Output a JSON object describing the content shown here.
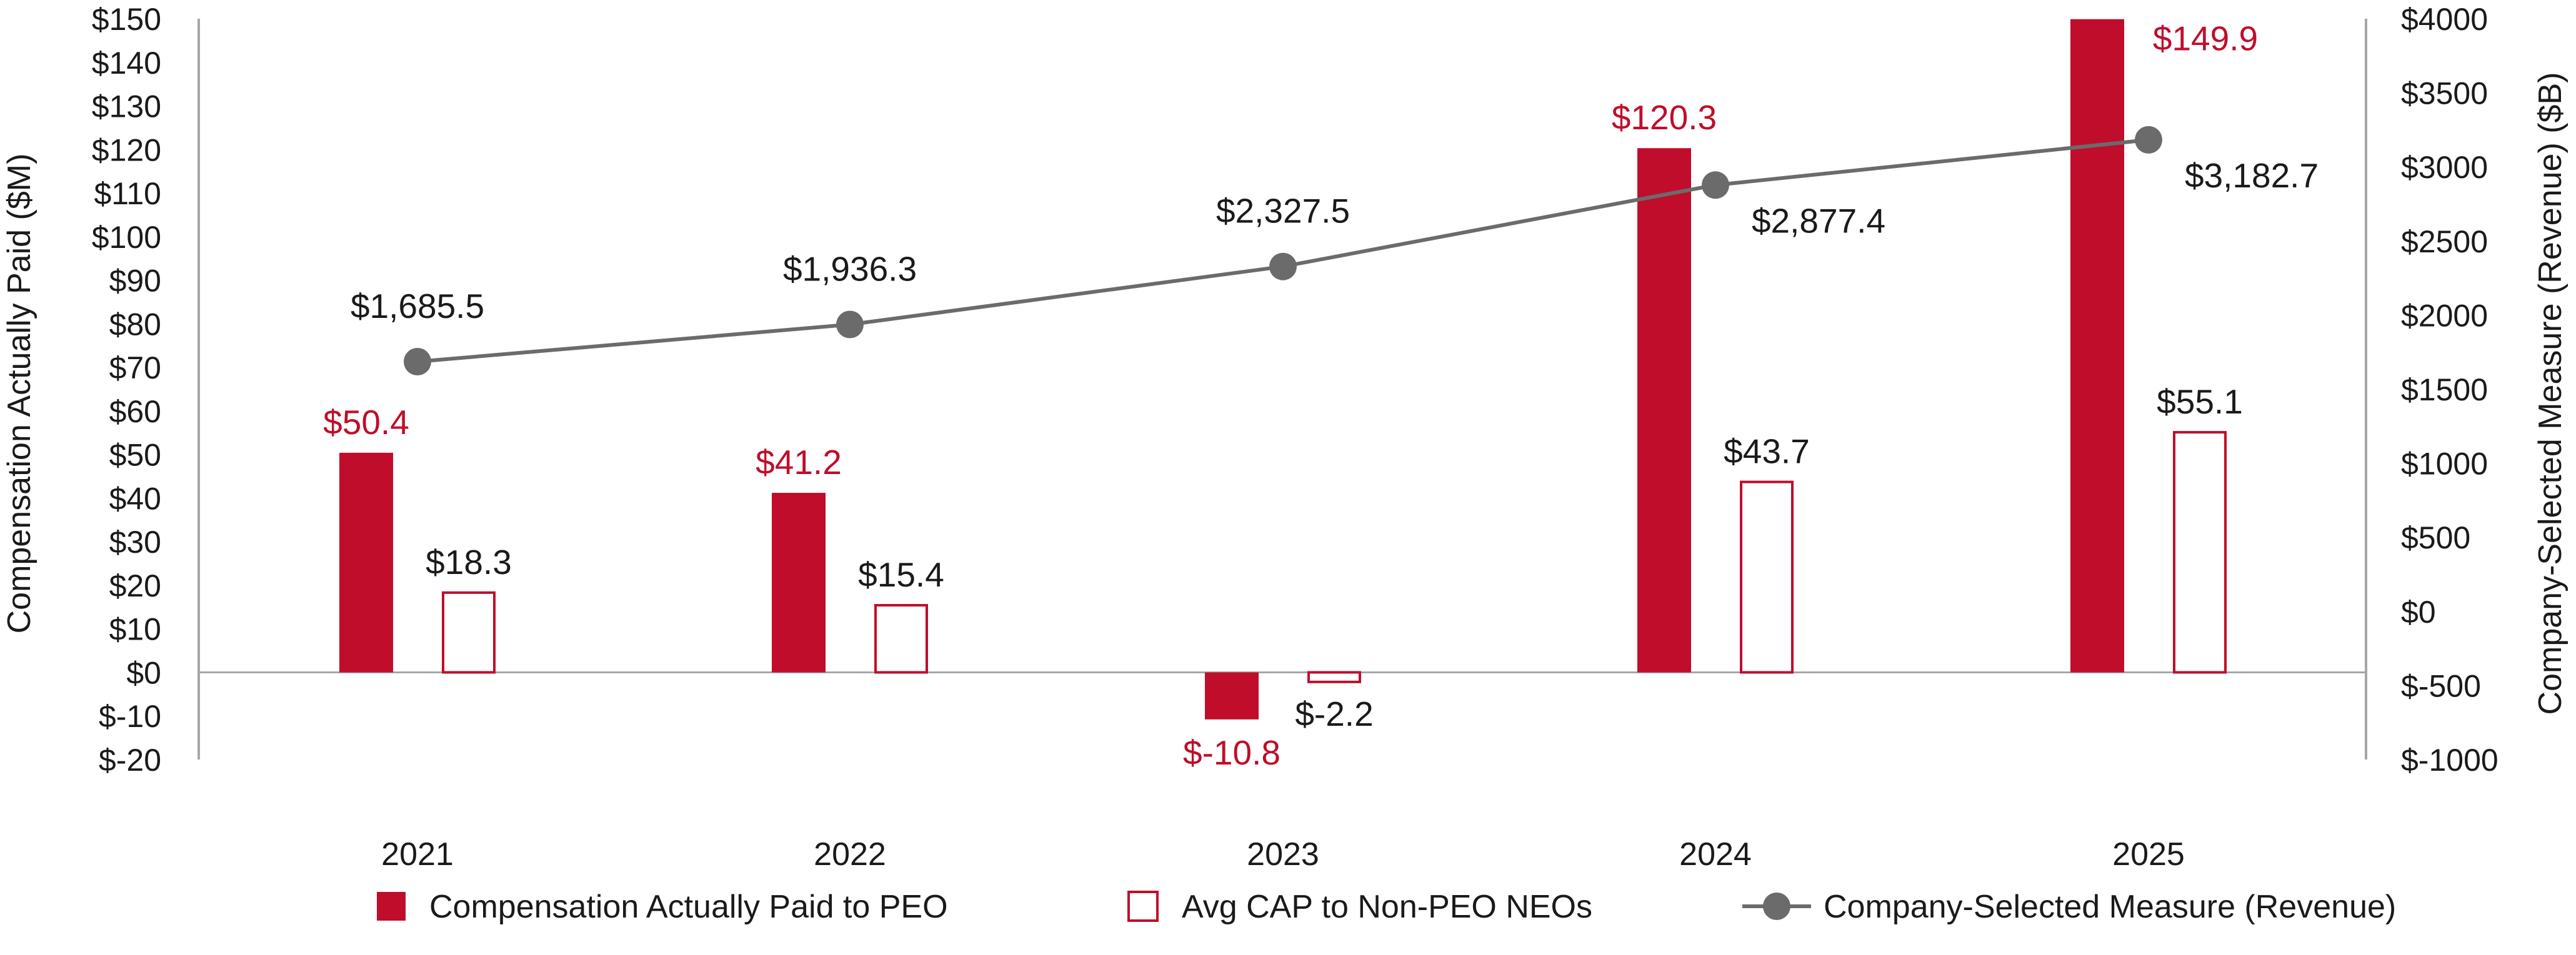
{
  "chart_data": {
    "type": "bar",
    "categories": [
      "2021",
      "2022",
      "2023",
      "2024",
      "2025"
    ],
    "series": [
      {
        "name": "Compensation Actually Paid to PEO",
        "axis": "left",
        "style": "bar-filled",
        "values": [
          50.4,
          41.2,
          -10.8,
          120.3,
          149.9
        ],
        "labels": [
          "$50.4",
          "$41.2",
          "$-10.8",
          "$120.3",
          "$149.9"
        ]
      },
      {
        "name": "Avg CAP to Non-PEO NEOs",
        "axis": "right-of-pair",
        "style": "bar-outline",
        "values": [
          18.3,
          15.4,
          -2.2,
          43.7,
          55.1
        ],
        "labels": [
          "$18.3",
          "$15.4",
          "$-2.2",
          "$43.7",
          "$55.1"
        ]
      },
      {
        "name": "Company-Selected Measure (Revenue)",
        "axis": "right",
        "style": "line-markers",
        "values": [
          1685.5,
          1936.3,
          2327.5,
          2877.4,
          3182.7
        ],
        "labels": [
          "$1,685.5",
          "$1,936.3",
          "$2,327.5",
          "$2,877.4",
          "$3,182.7"
        ]
      }
    ],
    "ylabel": "Compensation Actually Paid ($M)",
    "y2label": "Company-Selected Measure (Revenue) ($B)",
    "ylim": [
      -20,
      150
    ],
    "y2lim": [
      -1000,
      4000
    ],
    "yticks": [
      "$150",
      "$140",
      "$130",
      "$120",
      "$110",
      "$100",
      "$90",
      "$80",
      "$70",
      "$60",
      "$50",
      "$40",
      "$30",
      "$20",
      "$10",
      "$0",
      "$-10",
      "$-20"
    ],
    "y2ticks": [
      "$4000",
      "$3500",
      "$3000",
      "$2500",
      "$2000",
      "$1500",
      "$1000",
      "$500",
      "$0",
      "$-500",
      "$-1000"
    ],
    "grid": false,
    "legend_position": "bottom"
  },
  "colors": {
    "peo_bar": "#c00d2b",
    "neo_outline": "#c00d2b",
    "revenue_line": "#6b6b6b",
    "revenue_marker": "#6b6b6b",
    "axis": "#a6a6a6",
    "text": "#1a1a1a"
  }
}
